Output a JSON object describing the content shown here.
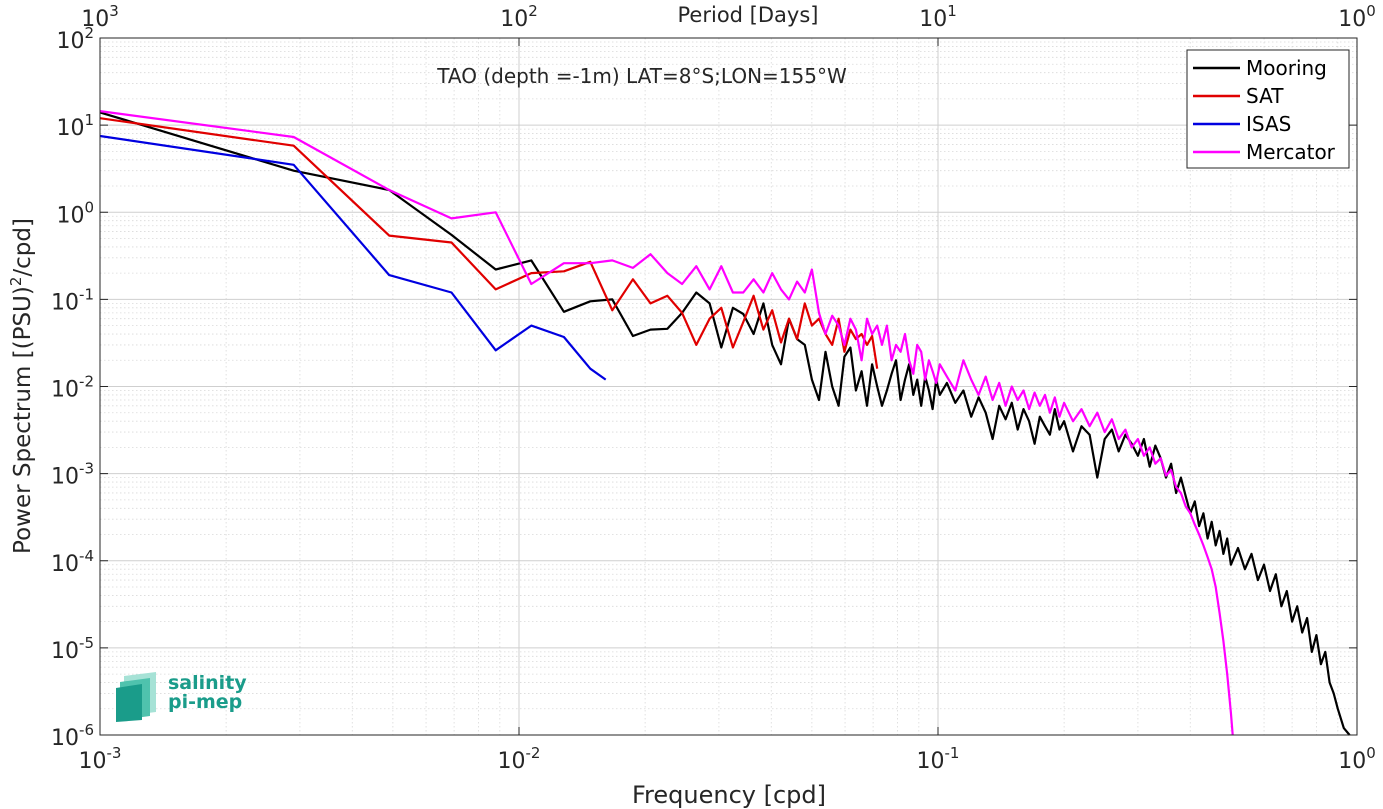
{
  "chart_data": {
    "type": "line",
    "title": "TAO (depth =-1m) LAT=8°S;LON=155°W",
    "xlabel": "Frequency [cpd]",
    "ylabel": "Power Spectrum [(PSU)",
    "ylabel_sup": "2",
    "ylabel_tail": "/cpd]",
    "top_xlabel": "Period [Days]",
    "xscale": "log",
    "yscale": "log",
    "xlim": [
      0.001,
      1
    ],
    "ylim": [
      1e-06,
      100
    ],
    "grid": true,
    "legend_position": "top-right",
    "x_ticks": [
      {
        "value": 0.001,
        "base": "10",
        "exp": "-3"
      },
      {
        "value": 0.01,
        "base": "10",
        "exp": "-2"
      },
      {
        "value": 0.1,
        "base": "10",
        "exp": "-1"
      },
      {
        "value": 1,
        "base": "10",
        "exp": "0"
      }
    ],
    "top_ticks": [
      {
        "value": 0.001,
        "base": "10",
        "exp": "3"
      },
      {
        "value": 0.01,
        "base": "10",
        "exp": "2"
      },
      {
        "value": 0.1,
        "base": "10",
        "exp": "1"
      },
      {
        "value": 1,
        "base": "10",
        "exp": "0"
      }
    ],
    "y_ticks": [
      {
        "value": 100,
        "base": "10",
        "exp": "2"
      },
      {
        "value": 10,
        "base": "10",
        "exp": "1"
      },
      {
        "value": 1,
        "base": "10",
        "exp": "0"
      },
      {
        "value": 0.1,
        "base": "10",
        "exp": "-1"
      },
      {
        "value": 0.01,
        "base": "10",
        "exp": "-2"
      },
      {
        "value": 0.001,
        "base": "10",
        "exp": "-3"
      },
      {
        "value": 0.0001,
        "base": "10",
        "exp": "-4"
      },
      {
        "value": 1e-05,
        "base": "10",
        "exp": "-5"
      },
      {
        "value": 1e-06,
        "base": "10",
        "exp": "-6"
      }
    ],
    "series": [
      {
        "name": "Mooring",
        "color": "#000000",
        "points": [
          [
            0.001,
            14
          ],
          [
            0.0029,
            3.0
          ],
          [
            0.0049,
            1.8
          ],
          [
            0.0069,
            0.55
          ],
          [
            0.0088,
            0.22
          ],
          [
            0.0107,
            0.28
          ],
          [
            0.0128,
            0.072
          ],
          [
            0.0148,
            0.095
          ],
          [
            0.0167,
            0.1
          ],
          [
            0.0187,
            0.038
          ],
          [
            0.0206,
            0.045
          ],
          [
            0.0226,
            0.046
          ],
          [
            0.0245,
            0.07
          ],
          [
            0.0265,
            0.12
          ],
          [
            0.0285,
            0.09
          ],
          [
            0.0304,
            0.028
          ],
          [
            0.0324,
            0.08
          ],
          [
            0.0343,
            0.068
          ],
          [
            0.0363,
            0.04
          ],
          [
            0.0383,
            0.09
          ],
          [
            0.0402,
            0.03
          ],
          [
            0.0422,
            0.018
          ],
          [
            0.0441,
            0.06
          ],
          [
            0.0461,
            0.035
          ],
          [
            0.0481,
            0.03
          ],
          [
            0.05,
            0.012
          ],
          [
            0.052,
            0.007
          ],
          [
            0.0539,
            0.025
          ],
          [
            0.0559,
            0.01
          ],
          [
            0.0579,
            0.006
          ],
          [
            0.0598,
            0.022
          ],
          [
            0.0618,
            0.028
          ],
          [
            0.0637,
            0.009
          ],
          [
            0.0657,
            0.015
          ],
          [
            0.0677,
            0.006
          ],
          [
            0.0696,
            0.018
          ],
          [
            0.0716,
            0.01
          ],
          [
            0.0735,
            0.006
          ],
          [
            0.0755,
            0.009
          ],
          [
            0.0775,
            0.014
          ],
          [
            0.0794,
            0.02
          ],
          [
            0.0814,
            0.007
          ],
          [
            0.0834,
            0.012
          ],
          [
            0.0853,
            0.018
          ],
          [
            0.0873,
            0.008
          ],
          [
            0.0892,
            0.012
          ],
          [
            0.0912,
            0.006
          ],
          [
            0.0932,
            0.013
          ],
          [
            0.0951,
            0.009
          ],
          [
            0.0971,
            0.0055
          ],
          [
            0.099,
            0.012
          ],
          [
            0.101,
            0.008
          ],
          [
            0.105,
            0.011
          ],
          [
            0.11,
            0.0065
          ],
          [
            0.115,
            0.009
          ],
          [
            0.12,
            0.0045
          ],
          [
            0.125,
            0.0075
          ],
          [
            0.13,
            0.005
          ],
          [
            0.135,
            0.0025
          ],
          [
            0.14,
            0.006
          ],
          [
            0.145,
            0.0042
          ],
          [
            0.15,
            0.0065
          ],
          [
            0.155,
            0.0032
          ],
          [
            0.16,
            0.0055
          ],
          [
            0.165,
            0.004
          ],
          [
            0.17,
            0.0022
          ],
          [
            0.175,
            0.0045
          ],
          [
            0.18,
            0.0035
          ],
          [
            0.185,
            0.0028
          ],
          [
            0.19,
            0.0055
          ],
          [
            0.195,
            0.0032
          ],
          [
            0.2,
            0.004
          ],
          [
            0.21,
            0.0018
          ],
          [
            0.22,
            0.0035
          ],
          [
            0.23,
            0.0028
          ],
          [
            0.24,
            0.0009
          ],
          [
            0.25,
            0.0025
          ],
          [
            0.26,
            0.0032
          ],
          [
            0.27,
            0.0018
          ],
          [
            0.28,
            0.0028
          ],
          [
            0.29,
            0.0022
          ],
          [
            0.3,
            0.0016
          ],
          [
            0.31,
            0.0025
          ],
          [
            0.32,
            0.0012
          ],
          [
            0.33,
            0.0021
          ],
          [
            0.34,
            0.0015
          ],
          [
            0.35,
            0.0009
          ],
          [
            0.36,
            0.0013
          ],
          [
            0.37,
            0.0006
          ],
          [
            0.38,
            0.0009
          ],
          [
            0.39,
            0.00055
          ],
          [
            0.4,
            0.00035
          ],
          [
            0.41,
            0.00048
          ],
          [
            0.42,
            0.00025
          ],
          [
            0.43,
            0.00035
          ],
          [
            0.44,
            0.00018
          ],
          [
            0.45,
            0.00028
          ],
          [
            0.46,
            0.00015
          ],
          [
            0.47,
            0.00022
          ],
          [
            0.48,
            0.00012
          ],
          [
            0.49,
            0.00018
          ],
          [
            0.5,
            9e-05
          ],
          [
            0.52,
            0.00014
          ],
          [
            0.54,
            8e-05
          ],
          [
            0.56,
            0.00012
          ],
          [
            0.58,
            6e-05
          ],
          [
            0.6,
            9e-05
          ],
          [
            0.62,
            4.5e-05
          ],
          [
            0.64,
            7e-05
          ],
          [
            0.66,
            3e-05
          ],
          [
            0.68,
            4.5e-05
          ],
          [
            0.7,
            2e-05
          ],
          [
            0.72,
            3e-05
          ],
          [
            0.74,
            1.5e-05
          ],
          [
            0.76,
            2.2e-05
          ],
          [
            0.78,
            9e-06
          ],
          [
            0.8,
            1.4e-05
          ],
          [
            0.82,
            6.5e-06
          ],
          [
            0.84,
            9e-06
          ],
          [
            0.86,
            4e-06
          ],
          [
            0.88,
            3e-06
          ],
          [
            0.9,
            2e-06
          ],
          [
            0.93,
            1.2e-06
          ],
          [
            0.96,
            1e-06
          ]
        ]
      },
      {
        "name": "SAT",
        "color": "#e00000",
        "points": [
          [
            0.001,
            12
          ],
          [
            0.0029,
            5.8
          ],
          [
            0.0049,
            0.54
          ],
          [
            0.0069,
            0.45
          ],
          [
            0.0088,
            0.13
          ],
          [
            0.0107,
            0.2
          ],
          [
            0.0128,
            0.21
          ],
          [
            0.0148,
            0.27
          ],
          [
            0.0167,
            0.075
          ],
          [
            0.0187,
            0.17
          ],
          [
            0.0206,
            0.09
          ],
          [
            0.0226,
            0.11
          ],
          [
            0.0245,
            0.07
          ],
          [
            0.0265,
            0.03
          ],
          [
            0.0285,
            0.06
          ],
          [
            0.0304,
            0.08
          ],
          [
            0.0324,
            0.028
          ],
          [
            0.0343,
            0.055
          ],
          [
            0.0363,
            0.11
          ],
          [
            0.0383,
            0.045
          ],
          [
            0.0402,
            0.075
          ],
          [
            0.0422,
            0.032
          ],
          [
            0.0441,
            0.06
          ],
          [
            0.0461,
            0.035
          ],
          [
            0.0481,
            0.09
          ],
          [
            0.05,
            0.05
          ],
          [
            0.052,
            0.06
          ],
          [
            0.0539,
            0.04
          ],
          [
            0.0559,
            0.03
          ],
          [
            0.0579,
            0.06
          ],
          [
            0.0598,
            0.025
          ],
          [
            0.0618,
            0.045
          ],
          [
            0.0637,
            0.035
          ],
          [
            0.0657,
            0.04
          ],
          [
            0.0677,
            0.03
          ],
          [
            0.0696,
            0.038
          ],
          [
            0.0716,
            0.016
          ]
        ]
      },
      {
        "name": "ISAS",
        "color": "#0000e0",
        "points": [
          [
            0.001,
            7.5
          ],
          [
            0.0029,
            3.5
          ],
          [
            0.0049,
            0.19
          ],
          [
            0.0069,
            0.12
          ],
          [
            0.0088,
            0.026
          ],
          [
            0.0107,
            0.05
          ],
          [
            0.0128,
            0.037
          ],
          [
            0.0148,
            0.016
          ],
          [
            0.0161,
            0.012
          ]
        ]
      },
      {
        "name": "Mercator",
        "color": "#ff00ff",
        "points": [
          [
            0.001,
            14.5
          ],
          [
            0.0029,
            7.3
          ],
          [
            0.0049,
            1.8
          ],
          [
            0.0069,
            0.85
          ],
          [
            0.0088,
            1.0
          ],
          [
            0.0107,
            0.15
          ],
          [
            0.0128,
            0.26
          ],
          [
            0.0148,
            0.26
          ],
          [
            0.0167,
            0.28
          ],
          [
            0.0187,
            0.23
          ],
          [
            0.0206,
            0.33
          ],
          [
            0.0226,
            0.2
          ],
          [
            0.0245,
            0.15
          ],
          [
            0.0265,
            0.24
          ],
          [
            0.0285,
            0.13
          ],
          [
            0.0304,
            0.24
          ],
          [
            0.0324,
            0.12
          ],
          [
            0.0343,
            0.12
          ],
          [
            0.0363,
            0.17
          ],
          [
            0.0383,
            0.12
          ],
          [
            0.0402,
            0.2
          ],
          [
            0.0422,
            0.13
          ],
          [
            0.0441,
            0.1
          ],
          [
            0.0461,
            0.16
          ],
          [
            0.0481,
            0.12
          ],
          [
            0.05,
            0.22
          ],
          [
            0.052,
            0.07
          ],
          [
            0.0539,
            0.04
          ],
          [
            0.0559,
            0.065
          ],
          [
            0.0579,
            0.05
          ],
          [
            0.0598,
            0.03
          ],
          [
            0.0618,
            0.06
          ],
          [
            0.0637,
            0.045
          ],
          [
            0.0657,
            0.02
          ],
          [
            0.0677,
            0.06
          ],
          [
            0.0696,
            0.04
          ],
          [
            0.0716,
            0.05
          ],
          [
            0.0735,
            0.03
          ],
          [
            0.0755,
            0.05
          ],
          [
            0.0775,
            0.02
          ],
          [
            0.0794,
            0.03
          ],
          [
            0.0814,
            0.025
          ],
          [
            0.0834,
            0.04
          ],
          [
            0.0853,
            0.02
          ],
          [
            0.0873,
            0.014
          ],
          [
            0.0892,
            0.03
          ],
          [
            0.0912,
            0.025
          ],
          [
            0.0932,
            0.012
          ],
          [
            0.0951,
            0.02
          ],
          [
            0.0971,
            0.015
          ],
          [
            0.099,
            0.011
          ],
          [
            0.101,
            0.018
          ],
          [
            0.105,
            0.013
          ],
          [
            0.11,
            0.009
          ],
          [
            0.115,
            0.02
          ],
          [
            0.12,
            0.012
          ],
          [
            0.125,
            0.008
          ],
          [
            0.13,
            0.013
          ],
          [
            0.135,
            0.007
          ],
          [
            0.14,
            0.011
          ],
          [
            0.145,
            0.006
          ],
          [
            0.15,
            0.01
          ],
          [
            0.155,
            0.007
          ],
          [
            0.16,
            0.009
          ],
          [
            0.165,
            0.0055
          ],
          [
            0.17,
            0.0085
          ],
          [
            0.175,
            0.006
          ],
          [
            0.18,
            0.008
          ],
          [
            0.185,
            0.005
          ],
          [
            0.19,
            0.0075
          ],
          [
            0.195,
            0.0045
          ],
          [
            0.2,
            0.0065
          ],
          [
            0.21,
            0.004
          ],
          [
            0.22,
            0.0055
          ],
          [
            0.23,
            0.0035
          ],
          [
            0.24,
            0.005
          ],
          [
            0.25,
            0.003
          ],
          [
            0.26,
            0.0042
          ],
          [
            0.27,
            0.0025
          ],
          [
            0.28,
            0.0032
          ],
          [
            0.29,
            0.002
          ],
          [
            0.3,
            0.0025
          ],
          [
            0.31,
            0.0016
          ],
          [
            0.32,
            0.002
          ],
          [
            0.33,
            0.0013
          ],
          [
            0.34,
            0.0015
          ],
          [
            0.35,
            0.00095
          ],
          [
            0.36,
            0.0011
          ],
          [
            0.37,
            0.0007
          ],
          [
            0.38,
            0.0006
          ],
          [
            0.39,
            0.00042
          ],
          [
            0.4,
            0.00035
          ],
          [
            0.41,
            0.00026
          ],
          [
            0.42,
            0.0002
          ],
          [
            0.43,
            0.00015
          ],
          [
            0.44,
            0.00011
          ],
          [
            0.45,
            8e-05
          ],
          [
            0.46,
            5e-05
          ],
          [
            0.47,
            2.5e-05
          ],
          [
            0.48,
            1.2e-05
          ],
          [
            0.49,
            5e-06
          ],
          [
            0.5,
            1.8e-06
          ],
          [
            0.505,
            1e-06
          ]
        ]
      }
    ]
  },
  "logo": {
    "line1": "salinity",
    "line2": "pi-mep",
    "color": "#1a9c8a"
  }
}
